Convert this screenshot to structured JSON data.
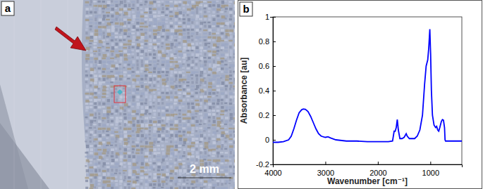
{
  "image_panel": {
    "label": "a",
    "scale_bar": "2 mm"
  },
  "chart_data": {
    "type": "line",
    "annotations": [
      "b"
    ],
    "x_label": "Wavenumber [cm⁻¹]",
    "y_label": "Absorbance [au]",
    "x": [
      4000,
      3900,
      3800,
      3700,
      3650,
      3600,
      3550,
      3500,
      3450,
      3420,
      3380,
      3330,
      3280,
      3230,
      3180,
      3130,
      3080,
      3000,
      2950,
      2900,
      2800,
      2600,
      2400,
      2200,
      2000,
      1800,
      1720,
      1690,
      1670,
      1650,
      1630,
      1610,
      1580,
      1540,
      1500,
      1460,
      1440,
      1400,
      1300,
      1250,
      1200,
      1150,
      1110,
      1080,
      1050,
      1030,
      1010,
      995,
      980,
      960,
      930,
      900,
      880,
      860,
      840,
      820,
      790,
      770,
      750,
      730,
      720,
      710,
      600,
      400
    ],
    "values": [
      -0.02,
      -0.02,
      -0.015,
      0.0,
      0.03,
      0.09,
      0.16,
      0.22,
      0.245,
      0.25,
      0.248,
      0.23,
      0.19,
      0.14,
      0.09,
      0.05,
      0.03,
      0.02,
      0.025,
      0.015,
      0.0,
      -0.01,
      -0.01,
      -0.015,
      -0.015,
      -0.015,
      -0.01,
      0.07,
      0.07,
      0.1,
      0.165,
      0.08,
      0.01,
      0.01,
      0.02,
      0.05,
      0.03,
      0.01,
      0.01,
      0.03,
      0.08,
      0.2,
      0.45,
      0.6,
      0.65,
      0.75,
      0.9,
      0.7,
      0.4,
      0.2,
      0.12,
      0.1,
      0.11,
      0.08,
      0.07,
      0.1,
      0.15,
      0.165,
      0.16,
      0.1,
      0.0,
      -0.01,
      -0.01,
      -0.01
    ],
    "color": "#0000ff",
    "xlim": [
      4000,
      400
    ],
    "xticks": [
      4000,
      3000,
      2000,
      1000
    ],
    "ylim": [
      -0.2,
      1
    ],
    "yticks": [
      -0.2,
      0,
      0.2,
      0.4,
      0.6,
      0.8,
      1
    ],
    "grid": false
  }
}
